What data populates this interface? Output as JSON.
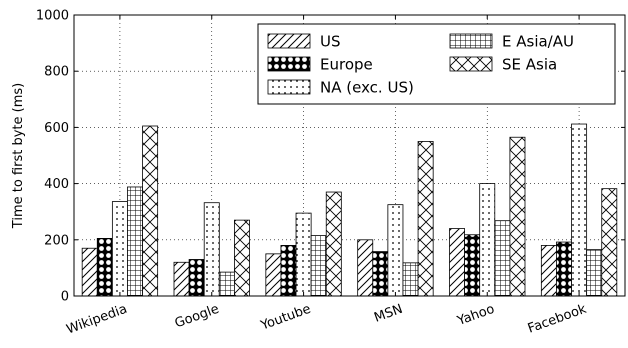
{
  "chart_data": {
    "type": "bar",
    "title": "",
    "xlabel": "",
    "ylabel": "Time to first byte (ms)",
    "ylim": [
      0,
      1000
    ],
    "yticks": [
      0,
      200,
      400,
      600,
      800,
      1000
    ],
    "grid": true,
    "legend_position": "top-right",
    "categories": [
      "Wikipedia",
      "Google",
      "Youtube",
      "MSN",
      "Yahoo",
      "Facebook"
    ],
    "series": [
      {
        "name": "US",
        "pattern": "diag",
        "values": [
          170,
          120,
          150,
          200,
          240,
          180
        ]
      },
      {
        "name": "Europe",
        "pattern": "stars",
        "values": [
          205,
          130,
          180,
          158,
          218,
          192
        ]
      },
      {
        "name": "NA (exc. US)",
        "pattern": "dots",
        "values": [
          336,
          332,
          295,
          325,
          400,
          612
        ]
      },
      {
        "name": "E Asia/AU",
        "pattern": "grid",
        "values": [
          388,
          85,
          215,
          118,
          268,
          165
        ]
      },
      {
        "name": "SE Asia",
        "pattern": "xhatch",
        "values": [
          605,
          270,
          370,
          550,
          565,
          382
        ]
      }
    ]
  }
}
